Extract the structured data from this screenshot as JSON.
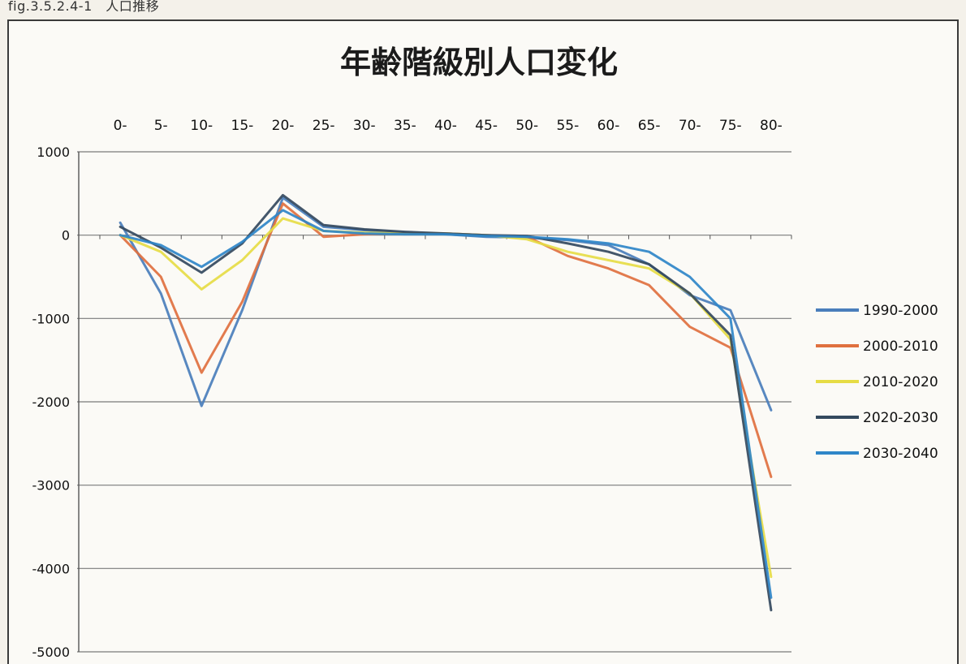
{
  "caption": "fig.3.5.2.4-1　人口推移",
  "chart_data": {
    "type": "line",
    "title": "年齢階級別人口変化",
    "xlabel": "",
    "ylabel": "",
    "categories": [
      "0-",
      "5-",
      "10-",
      "15-",
      "20-",
      "25-",
      "30-",
      "35-",
      "40-",
      "45-",
      "50-",
      "55-",
      "60-",
      "65-",
      "70-",
      "75-",
      "80-"
    ],
    "yticks": [
      1000,
      0,
      -1000,
      -2000,
      -3000,
      -4000,
      -5000
    ],
    "ylim": [
      -5000,
      1000
    ],
    "grid": true,
    "legend_position": "right",
    "series": [
      {
        "name": "1990-2000",
        "color": "#4a7ebb",
        "values": [
          150,
          -700,
          -2050,
          -900,
          450,
          100,
          60,
          30,
          10,
          -20,
          -30,
          -60,
          -120,
          -350,
          -720,
          -900,
          -2100
        ]
      },
      {
        "name": "2000-2010",
        "color": "#e0703f",
        "values": [
          0,
          -500,
          -1650,
          -800,
          380,
          -20,
          10,
          20,
          20,
          0,
          -20,
          -250,
          -400,
          -600,
          -1100,
          -1350,
          -2900
        ]
      },
      {
        "name": "2010-2020",
        "color": "#e6dc45",
        "values": [
          0,
          -200,
          -650,
          -300,
          200,
          50,
          30,
          20,
          20,
          0,
          -50,
          -200,
          -300,
          -400,
          -700,
          -1250,
          -4100
        ]
      },
      {
        "name": "2020-2030",
        "color": "#34495e",
        "values": [
          100,
          -150,
          -450,
          -100,
          480,
          120,
          70,
          40,
          20,
          0,
          -10,
          -100,
          -200,
          -350,
          -700,
          -1200,
          -4500
        ]
      },
      {
        "name": "2030-2040",
        "color": "#2f86c8",
        "values": [
          0,
          -120,
          -380,
          -80,
          300,
          50,
          20,
          10,
          10,
          -10,
          -20,
          -50,
          -100,
          -200,
          -500,
          -1000,
          -4350
        ]
      }
    ]
  }
}
